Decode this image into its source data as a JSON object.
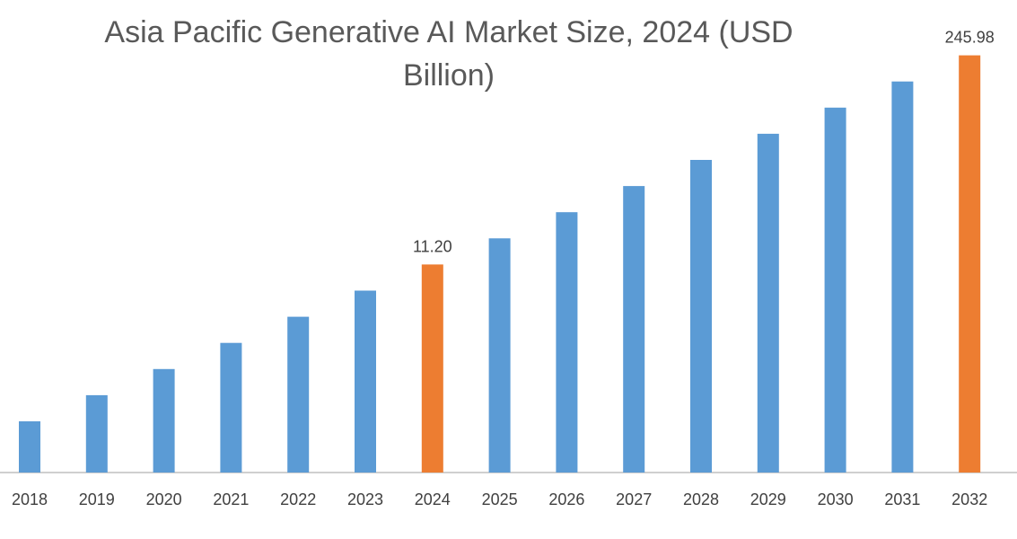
{
  "chart_data": {
    "type": "bar",
    "title": "Asia Pacific Generative AI Market Size, 2024 (USD Billion)",
    "xlabel": "",
    "ylabel": "",
    "categories": [
      "2018",
      "2019",
      "2020",
      "2021",
      "2022",
      "2023",
      "2024",
      "2025",
      "2026",
      "2027",
      "2028",
      "2029",
      "2030",
      "2031",
      "2032"
    ],
    "values": [
      null,
      null,
      null,
      null,
      null,
      null,
      11.2,
      null,
      null,
      null,
      null,
      null,
      null,
      null,
      245.98
    ],
    "data_labels": {
      "2024": "11.20",
      "2032": "245.98"
    },
    "highlighted": [
      "2024",
      "2032"
    ],
    "colors": {
      "default": "#5B9BD5",
      "highlight": "#ED7D31"
    },
    "grid": false,
    "legend": "none",
    "y_axis_visible": false
  }
}
